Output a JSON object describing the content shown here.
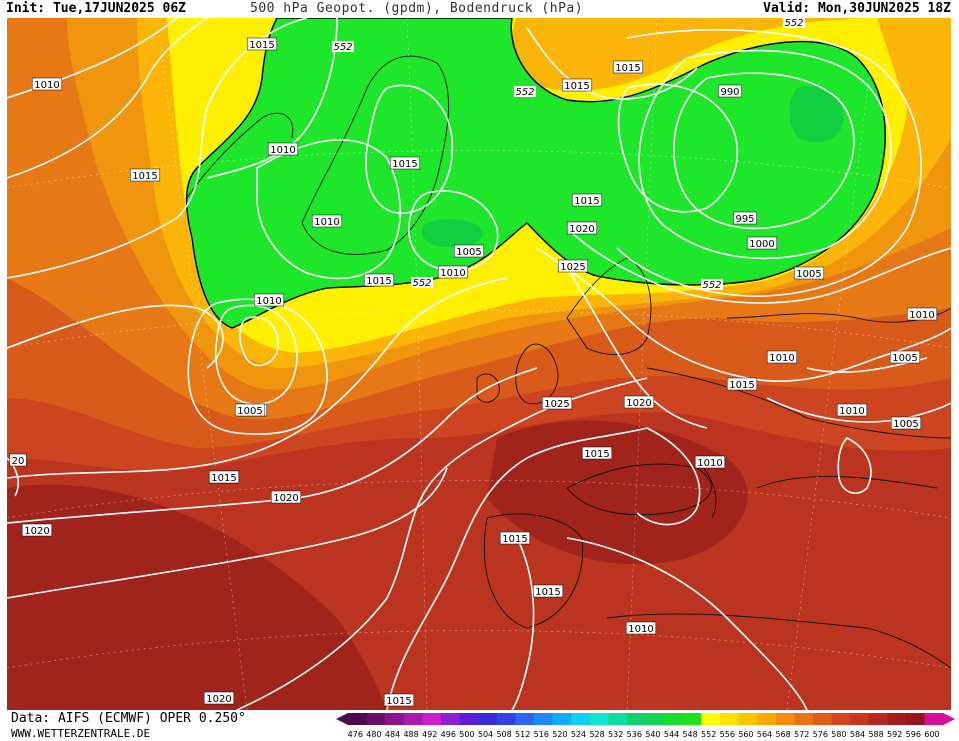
{
  "header": {
    "init": "Init: Tue,17JUN2025 06Z",
    "title": "500 hPa Geopot. (gpdm), Bodendruck (hPa)",
    "valid": "Valid: Mon,30JUN2025 18Z"
  },
  "footer": {
    "data_source": "Data: AIFS (ECMWF) OPER 0.250°",
    "website": "WWW.WETTERZENTRALE.DE"
  },
  "legend": {
    "values": [
      "476",
      "480",
      "484",
      "488",
      "492",
      "496",
      "500",
      "504",
      "508",
      "512",
      "516",
      "520",
      "524",
      "528",
      "532",
      "536",
      "540",
      "544",
      "548",
      "552",
      "556",
      "560",
      "564",
      "568",
      "572",
      "576",
      "580",
      "584",
      "588",
      "592",
      "596",
      "600"
    ],
    "colors": [
      "#4b0b4f",
      "#6a0e6e",
      "#8b148c",
      "#ab1aab",
      "#cc20cc",
      "#8d1ed2",
      "#5b1fd6",
      "#3d2ae0",
      "#2e43e8",
      "#2f66f0",
      "#1f8af5",
      "#11aef5",
      "#10cff0",
      "#12e6d0",
      "#11dca0",
      "#10d070",
      "#13d650",
      "#1cdc30",
      "#20e020",
      "#fffc00",
      "#ffe000",
      "#ffc400",
      "#ffa800",
      "#f58c10",
      "#eb7214",
      "#e15a18",
      "#d4461c",
      "#c7361e",
      "#b8281e",
      "#a81c1e",
      "#96141e",
      "#d6109a"
    ]
  },
  "map": {
    "isobar_labels": [
      "1010",
      "1015",
      "1010",
      "1015",
      "1015",
      "1010",
      "1015",
      "1010",
      "1005",
      "1010",
      "1015",
      "1015",
      "990",
      "995",
      "1000",
      "1005",
      "1010",
      "1005",
      "1010",
      "1005",
      "1010",
      "1015",
      "1020",
      "1025",
      "1015",
      "1020",
      "1025",
      "1015",
      "1010",
      "1015",
      "1015",
      "1010",
      "1020",
      "1015",
      "1020",
      "1015",
      "1010",
      "1020",
      "1005",
      "1015",
      "20"
    ],
    "height_labels": [
      "552",
      "552",
      "552",
      "552",
      "552"
    ],
    "colors": {
      "ridge_red": "#a0241c",
      "red": "#bb3420",
      "red_orange": "#cc4420",
      "orange_red": "#d85b1c",
      "orange": "#e67816",
      "light_orange": "#f0960e",
      "amber": "#fbb408",
      "yellow": "#fff000",
      "trough_green": "#1ee62a",
      "deep_green": "#10d040"
    }
  }
}
